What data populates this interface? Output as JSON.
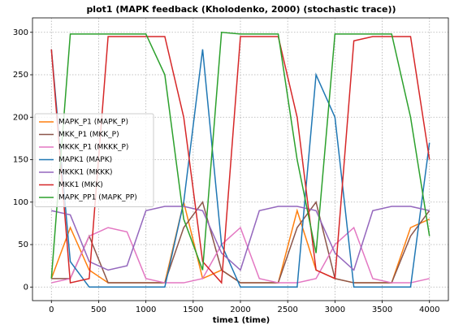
{
  "chart_data": {
    "type": "line",
    "title": "plot1 (MAPK feedback (Kholodenko, 2000) (stochastic trace))",
    "x_label": "time1 (time)",
    "x": [
      0,
      200,
      400,
      600,
      800,
      1000,
      1200,
      1400,
      1600,
      1800,
      2000,
      2200,
      2400,
      2600,
      2800,
      3000,
      3200,
      3400,
      3600,
      3800,
      4000
    ],
    "series": [
      {
        "name": "MAPK_P1 (MAPK_P)",
        "color": "#ff7f0e",
        "values": [
          10,
          70,
          20,
          5,
          5,
          5,
          5,
          100,
          10,
          20,
          5,
          5,
          5,
          90,
          20,
          10,
          5,
          5,
          5,
          70,
          80
        ]
      },
      {
        "name": "MKK_P1 (MKK_P)",
        "color": "#8c564b",
        "values": [
          10,
          10,
          60,
          5,
          5,
          5,
          5,
          70,
          100,
          20,
          5,
          5,
          5,
          70,
          100,
          10,
          5,
          5,
          5,
          60,
          90
        ]
      },
      {
        "name": "MKKK_P1 (MKKK_P)",
        "color": "#e377c2",
        "values": [
          5,
          10,
          60,
          70,
          65,
          10,
          5,
          5,
          10,
          50,
          70,
          10,
          5,
          5,
          10,
          50,
          70,
          10,
          5,
          5,
          10
        ]
      },
      {
        "name": "MAPK1 (MAPK)",
        "color": "#1f77b4",
        "values": [
          280,
          30,
          0,
          0,
          0,
          0,
          0,
          100,
          280,
          50,
          0,
          0,
          0,
          0,
          250,
          200,
          0,
          0,
          0,
          0,
          170
        ]
      },
      {
        "name": "MKKK1 (MKKK)",
        "color": "#9467bd",
        "values": [
          90,
          85,
          30,
          20,
          25,
          90,
          95,
          95,
          90,
          40,
          20,
          90,
          95,
          95,
          90,
          40,
          20,
          90,
          95,
          95,
          90
        ]
      },
      {
        "name": "MKK1 (MKK)",
        "color": "#d62728",
        "values": [
          280,
          5,
          10,
          295,
          295,
          295,
          295,
          200,
          30,
          5,
          295,
          295,
          295,
          200,
          20,
          10,
          290,
          295,
          295,
          295,
          150
        ]
      },
      {
        "name": "MAPK_PP1 (MAPK_PP)",
        "color": "#2ca02c",
        "values": [
          10,
          298,
          298,
          298,
          298,
          298,
          250,
          80,
          20,
          300,
          298,
          298,
          298,
          150,
          40,
          298,
          298,
          298,
          298,
          200,
          60
        ]
      }
    ],
    "xlim": [
      -200,
      4200
    ],
    "ylim": [
      -16,
      317
    ],
    "xticks": [
      0,
      500,
      1000,
      1500,
      2000,
      2500,
      3000,
      3500,
      4000
    ],
    "yticks": [
      0,
      50,
      100,
      150,
      200,
      250,
      300
    ],
    "grid": true,
    "legend": "center left"
  }
}
